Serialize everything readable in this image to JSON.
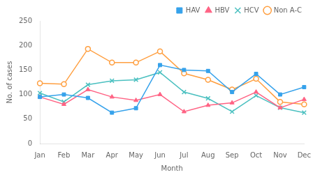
{
  "chart_data": {
    "type": "line",
    "categories": [
      "Jan",
      "Feb",
      "Mar",
      "Apr",
      "May",
      "Jun",
      "Jul",
      "Aug",
      "Sep",
      "Oct",
      "Nov",
      "Dec"
    ],
    "series": [
      {
        "name": "HAV",
        "marker": "square",
        "values": [
          95,
          100,
          93,
          63,
          72,
          160,
          150,
          148,
          105,
          142,
          100,
          115
        ]
      },
      {
        "name": "HBV",
        "marker": "triangle",
        "values": [
          95,
          80,
          110,
          95,
          88,
          100,
          65,
          78,
          83,
          105,
          73,
          90
        ]
      },
      {
        "name": "HCV",
        "marker": "x",
        "values": [
          103,
          85,
          120,
          128,
          130,
          145,
          105,
          92,
          65,
          98,
          73,
          63
        ]
      },
      {
        "name": "Non A-C",
        "marker": "open_circle",
        "values": [
          123,
          121,
          193,
          165,
          165,
          188,
          143,
          130,
          110,
          132,
          85,
          80
        ]
      }
    ],
    "xlabel": "Month",
    "ylabel": "No. of cases",
    "ylim": [
      0,
      250
    ],
    "yticks": [
      0,
      50,
      100,
      150,
      200,
      250
    ],
    "grid": false,
    "legend": "upper right"
  }
}
